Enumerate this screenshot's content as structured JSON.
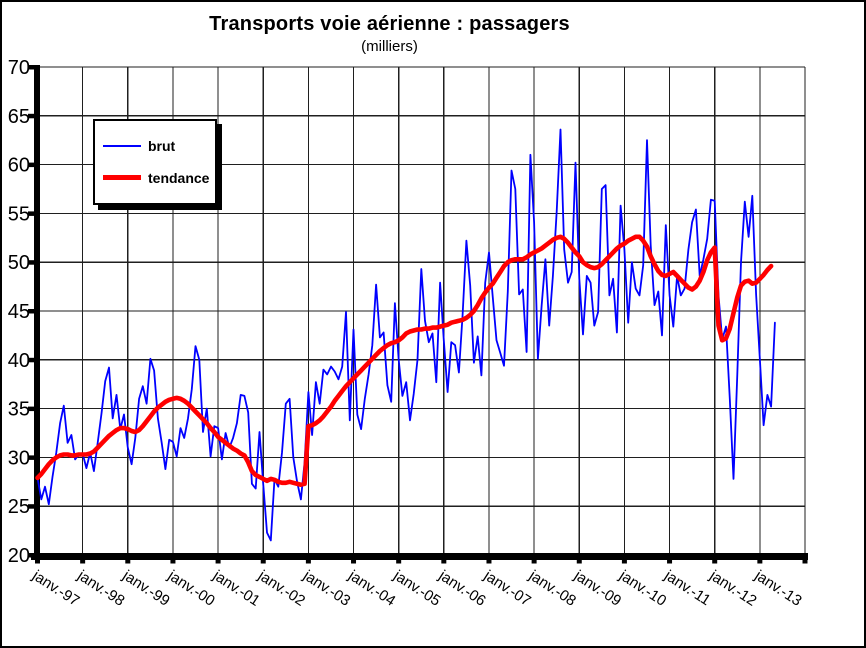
{
  "chart_data": {
    "type": "line",
    "title": "Transports voie aérienne : passagers",
    "subtitle": "(milliers)",
    "grid": true,
    "legend_position": "inside-top-left",
    "background_color": "#ffffff",
    "grid_color": "#1f1f1f",
    "axis_color": "#000000",
    "ylim": [
      20,
      70
    ],
    "y_tick_labels": [
      "70",
      "65",
      "60",
      "55",
      "50",
      "45",
      "40",
      "35",
      "30",
      "25",
      "20"
    ],
    "y_tick_values": [
      70,
      65,
      60,
      55,
      50,
      45,
      40,
      35,
      30,
      25,
      20
    ],
    "x_tick_labels": [
      "janv.-97",
      "janv.-98",
      "janv.-99",
      "janv.-00",
      "janv.-01",
      "janv.-02",
      "janv.-03",
      "janv.-04",
      "janv.-05",
      "janv.-06",
      "janv.-07",
      "janv.-08",
      "janv.-09",
      "janv.-10",
      "janv.-11",
      "janv.-12",
      "janv.-13"
    ],
    "x_unit": "month",
    "x_start_label": "janv.-97",
    "series": [
      {
        "name": "brut",
        "color": "#0000ff",
        "stroke_width": 1.8,
        "monthly_values_from_jan97": [
          27.9,
          25.7,
          27.0,
          25.2,
          28.0,
          30.5,
          33.5,
          35.3,
          31.5,
          32.3,
          29.8,
          30.3,
          30.4,
          28.9,
          30.5,
          28.6,
          31.5,
          34.5,
          37.8,
          39.2,
          34.0,
          36.4,
          32.9,
          34.4,
          31.0,
          29.3,
          32.0,
          36.0,
          37.3,
          35.5,
          40.1,
          38.9,
          34.0,
          31.5,
          28.8,
          31.8,
          31.6,
          30.1,
          33.0,
          32.0,
          34.0,
          37.0,
          41.4,
          40.0,
          32.6,
          35.0,
          30.1,
          33.2,
          33.0,
          29.8,
          32.5,
          31.0,
          32.0,
          33.5,
          36.4,
          36.3,
          34.6,
          27.3,
          26.8,
          32.6,
          27.3,
          22.3,
          21.5,
          27.8,
          27.0,
          30.5,
          35.5,
          36.0,
          30.0,
          27.5,
          25.7,
          29.5,
          36.7,
          32.3,
          37.7,
          35.5,
          39.0,
          38.5,
          39.3,
          38.8,
          38.0,
          39.3,
          44.9,
          33.8,
          43.1,
          34.4,
          32.9,
          36.0,
          38.5,
          41.5,
          47.7,
          42.3,
          42.8,
          37.4,
          35.7,
          45.8,
          40.0,
          36.3,
          37.7,
          33.8,
          36.5,
          40.0,
          49.3,
          44.0,
          41.8,
          42.7,
          37.7,
          47.9,
          42.0,
          36.7,
          41.8,
          41.5,
          38.7,
          44.6,
          52.2,
          47.6,
          39.7,
          42.4,
          38.4,
          47.9,
          51.0,
          46.5,
          42.0,
          40.7,
          39.4,
          47.0,
          59.4,
          57.5,
          46.7,
          47.2,
          40.8,
          61.0,
          54.1,
          40.1,
          45.5,
          50.3,
          43.5,
          48.6,
          55.2,
          63.6,
          51.3,
          47.9,
          49.0,
          60.2,
          48.3,
          42.6,
          48.6,
          47.9,
          43.5,
          44.9,
          57.5,
          57.9,
          46.6,
          48.3,
          42.8,
          55.8,
          51.3,
          43.8,
          50.0,
          47.3,
          46.6,
          49.7,
          62.5,
          51.7,
          45.6,
          47.0,
          42.5,
          53.8,
          46.6,
          43.4,
          48.6,
          46.6,
          47.3,
          51.3,
          54.1,
          55.4,
          48.6,
          50.3,
          52.4,
          56.4,
          56.3,
          46.6,
          42.1,
          43.4,
          36.0,
          27.8,
          38.5,
          50.0,
          56.2,
          52.6,
          56.8,
          46.7,
          40.0,
          33.3,
          36.4,
          35.2,
          43.8
        ]
      },
      {
        "name": "tendance",
        "color": "#ff0000",
        "stroke_width": 4.6,
        "monthly_values_from_jan97": [
          27.9,
          28.3,
          28.8,
          29.3,
          29.7,
          30.0,
          30.2,
          30.3,
          30.3,
          30.2,
          30.2,
          30.3,
          30.3,
          30.3,
          30.4,
          30.6,
          31.0,
          31.4,
          31.8,
          32.2,
          32.5,
          32.8,
          33.0,
          33.0,
          32.9,
          32.7,
          32.6,
          32.8,
          33.2,
          33.7,
          34.2,
          34.7,
          35.1,
          35.4,
          35.7,
          35.9,
          36.0,
          36.1,
          36.0,
          35.8,
          35.5,
          35.1,
          34.7,
          34.3,
          33.9,
          33.5,
          33.0,
          32.6,
          32.1,
          31.8,
          31.5,
          31.2,
          30.9,
          30.7,
          30.4,
          30.2,
          29.5,
          28.6,
          28.2,
          28.0,
          27.8,
          27.6,
          27.8,
          27.7,
          27.5,
          27.4,
          27.4,
          27.5,
          27.4,
          27.3,
          27.2,
          27.3,
          33.2,
          33.3,
          33.5,
          33.8,
          34.2,
          34.7,
          35.2,
          35.8,
          36.3,
          36.8,
          37.3,
          37.7,
          38.1,
          38.5,
          38.9,
          39.3,
          39.7,
          40.1,
          40.5,
          40.9,
          41.2,
          41.5,
          41.7,
          41.8,
          42.0,
          42.3,
          42.7,
          42.9,
          43.0,
          43.1,
          43.1,
          43.2,
          43.2,
          43.3,
          43.3,
          43.4,
          43.5,
          43.6,
          43.8,
          43.9,
          44.0,
          44.1,
          44.3,
          44.6,
          45.0,
          45.6,
          46.3,
          46.9,
          47.4,
          47.8,
          48.4,
          49.0,
          49.6,
          50.0,
          50.2,
          50.3,
          50.3,
          50.3,
          50.5,
          50.8,
          51.0,
          51.2,
          51.4,
          51.7,
          52.0,
          52.3,
          52.5,
          52.6,
          52.4,
          52.0,
          51.5,
          51.0,
          50.6,
          50.0,
          49.7,
          49.5,
          49.4,
          49.5,
          49.8,
          50.2,
          50.6,
          51.0,
          51.4,
          51.7,
          51.9,
          52.2,
          52.4,
          52.6,
          52.6,
          52.2,
          51.6,
          50.6,
          49.8,
          49.1,
          48.7,
          48.6,
          48.8,
          49.0,
          48.6,
          48.2,
          47.8,
          47.4,
          47.2,
          47.5,
          48.1,
          49.0,
          50.2,
          51.0,
          51.5,
          43.5,
          42.0,
          42.2,
          43.2,
          44.8,
          46.4,
          47.6,
          48.0,
          48.1,
          47.8,
          47.9,
          48.3,
          48.7,
          49.2,
          49.6
        ]
      }
    ]
  },
  "legend": {
    "items": [
      {
        "label": "brut",
        "color": "#0000ff",
        "swatch_thickness": 2
      },
      {
        "label": "tendance",
        "color": "#ff0000",
        "swatch_thickness": 5
      }
    ]
  }
}
